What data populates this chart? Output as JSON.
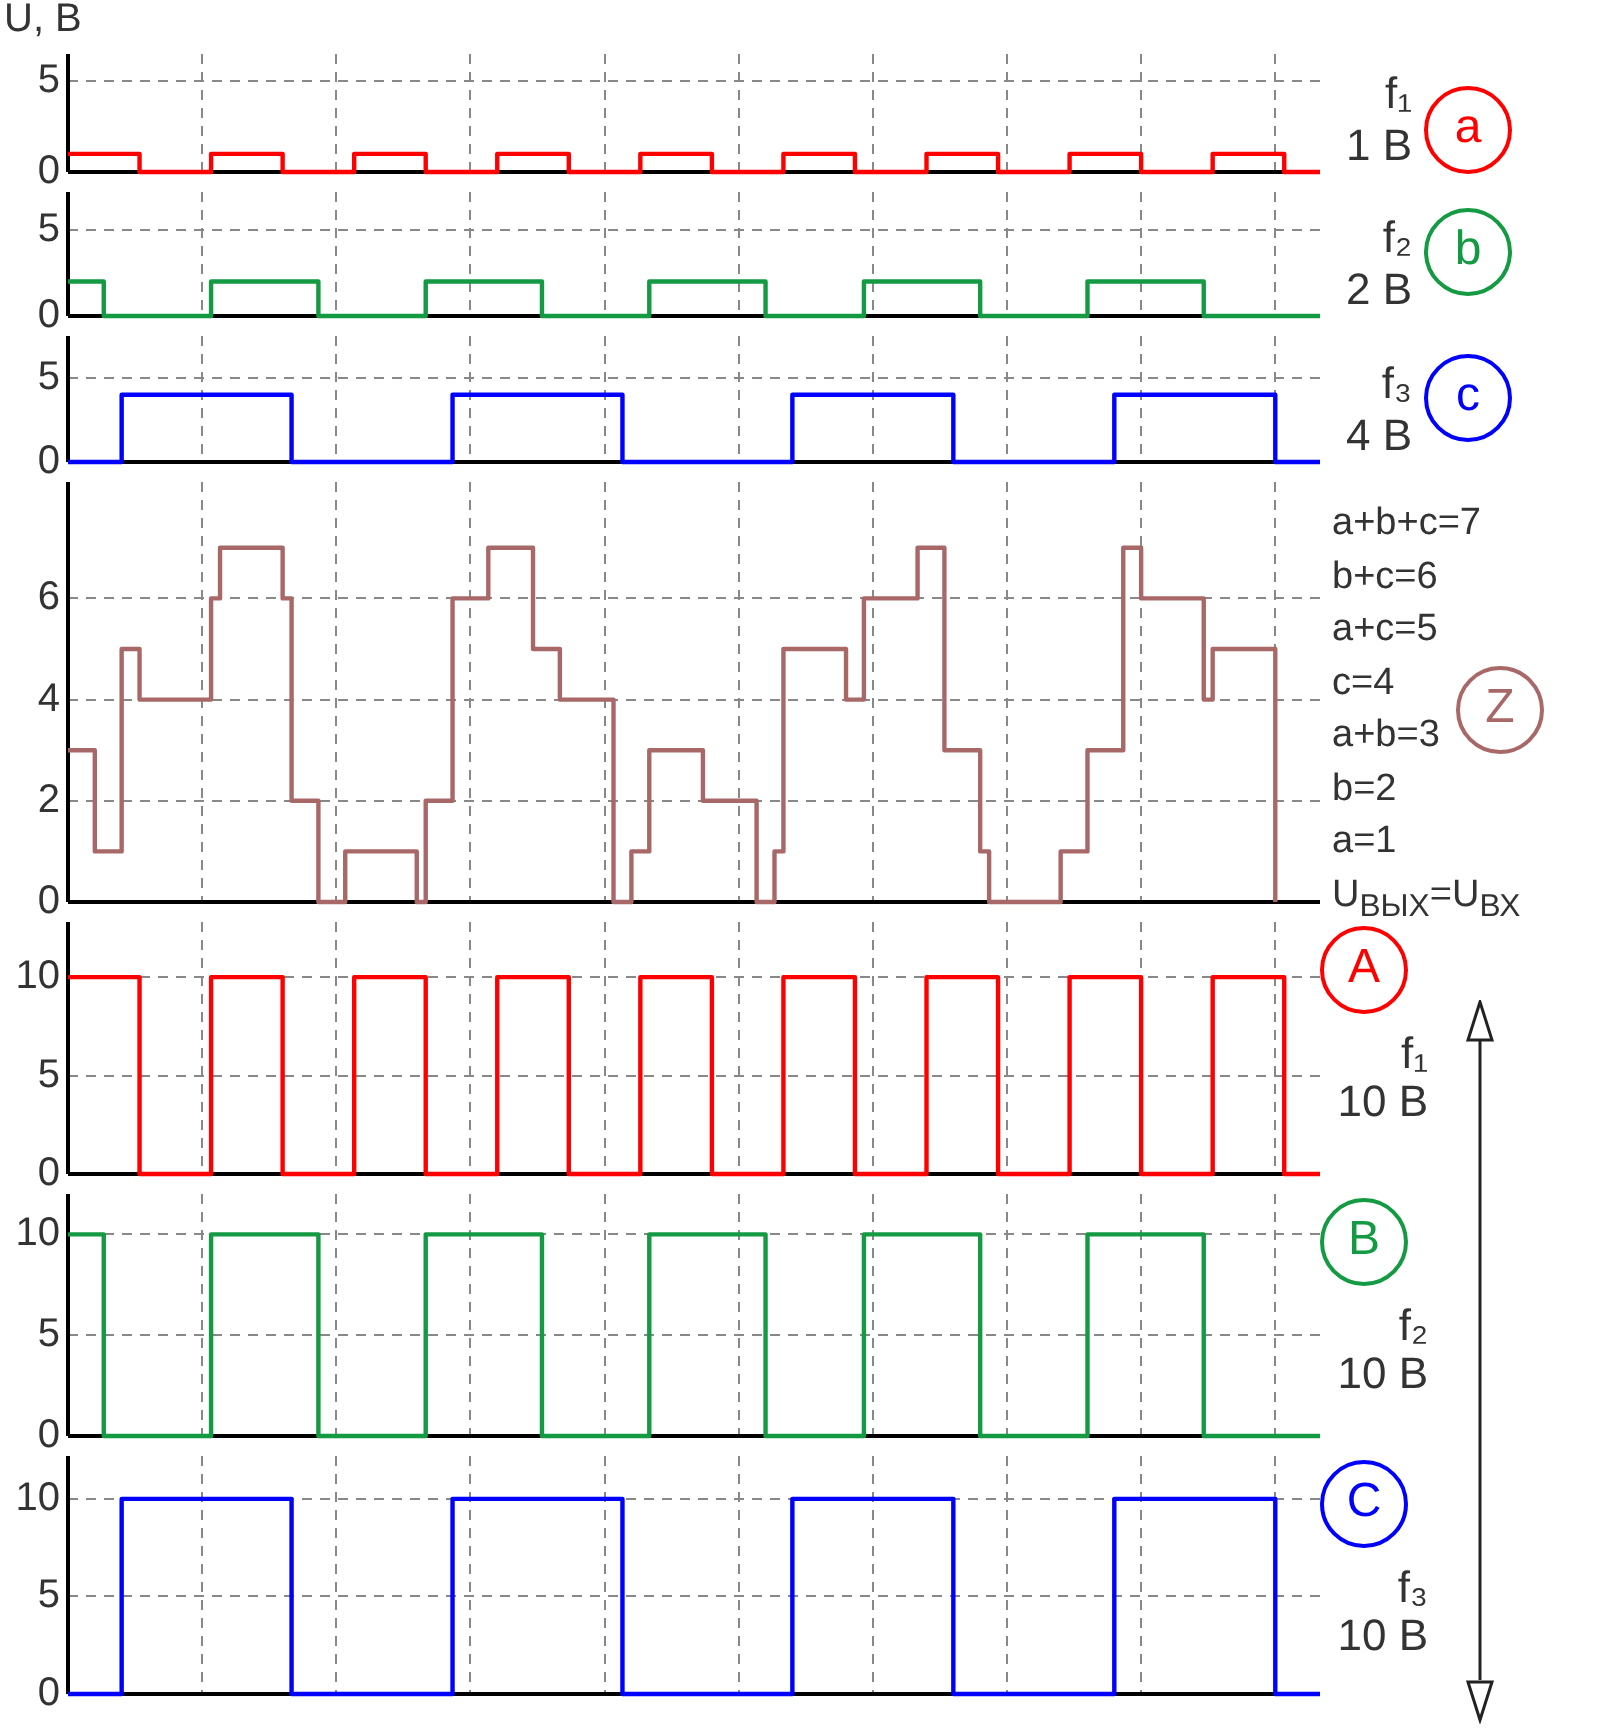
{
  "chart_data": [
    {
      "type": "step",
      "ylabel": "U, В",
      "categories": [
        null,
        null,
        null,
        null,
        null,
        null,
        null,
        null,
        null,
        null,
        null,
        null,
        null,
        null,
        null,
        null,
        null,
        null,
        null,
        null,
        null,
        null,
        null,
        null,
        null,
        null,
        null,
        null,
        null,
        null,
        null,
        null,
        null,
        null,
        null,
        null,
        null,
        null,
        null,
        null,
        null,
        null,
        null,
        null,
        null,
        null,
        null,
        null,
        null,
        null,
        null,
        null,
        null,
        null,
        null,
        null,
        null,
        null,
        null,
        null,
        null,
        null,
        null,
        null,
        null,
        null,
        null,
        null,
        null,
        null,
        null,
        null,
        null,
        null,
        null,
        null,
        null,
        null,
        null,
        null,
        null,
        null,
        null,
        null,
        null,
        null,
        null,
        null,
        null,
        null,
        null,
        null,
        null,
        null,
        null,
        null,
        null,
        null,
        null,
        null,
        null,
        null,
        null,
        null,
        null,
        null,
        null,
        null,
        null,
        null,
        null,
        null,
        null,
        null,
        null,
        null,
        null,
        null,
        null,
        null,
        null,
        null,
        null,
        null,
        null,
        null,
        null,
        null,
        null,
        null,
        null,
        null,
        null,
        null,
        null,
        null,
        null,
        null,
        null,
        null,
        null
      ],
      "series": [
        {
          "name": "a",
          "color": "#ff0000",
          "values": [
            1,
            1,
            1,
            1,
            1,
            1,
            1,
            1,
            0,
            0,
            0,
            0,
            0,
            0,
            0,
            0,
            1,
            1,
            1,
            1,
            1,
            1,
            1,
            1,
            0,
            0,
            0,
            0,
            0,
            0,
            0,
            0,
            1,
            1,
            1,
            1,
            1,
            1,
            1,
            1,
            0,
            0,
            0,
            0,
            0,
            0,
            0,
            0,
            1,
            1,
            1,
            1,
            1,
            1,
            1,
            1,
            0,
            0,
            0,
            0,
            0,
            0,
            0,
            0,
            1,
            1,
            1,
            1,
            1,
            1,
            1,
            1,
            0,
            0,
            0,
            0,
            0,
            0,
            0,
            0,
            1,
            1,
            1,
            1,
            1,
            1,
            1,
            1,
            0,
            0,
            0,
            0,
            0,
            0,
            0,
            0,
            1,
            1,
            1,
            1,
            1,
            1,
            1,
            1,
            0,
            0,
            0,
            0,
            0,
            0,
            0,
            0,
            1,
            1,
            1,
            1,
            1,
            1,
            1,
            1,
            0,
            0,
            0,
            0,
            0,
            0,
            0,
            0,
            1,
            1,
            1,
            1,
            1,
            1,
            1,
            1,
            0,
            0,
            0,
            0,
            0
          ]
        }
      ],
      "ylim": [
        0,
        6.5
      ],
      "yticks": [
        0,
        5
      ],
      "grid": true,
      "tick_labels": "y",
      "annotations": [
        "f₁",
        "1 В"
      ]
    },
    {
      "type": "step",
      "categories": [
        null,
        null,
        null,
        null,
        null,
        null,
        null,
        null,
        null,
        null,
        null,
        null,
        null,
        null,
        null,
        null,
        null,
        null,
        null,
        null,
        null,
        null,
        null,
        null,
        null,
        null,
        null,
        null,
        null,
        null,
        null,
        null,
        null,
        null,
        null,
        null,
        null,
        null,
        null,
        null,
        null,
        null,
        null,
        null,
        null,
        null,
        null,
        null,
        null,
        null,
        null,
        null,
        null,
        null,
        null,
        null,
        null,
        null,
        null,
        null,
        null,
        null,
        null,
        null,
        null,
        null,
        null,
        null,
        null,
        null,
        null,
        null,
        null,
        null,
        null,
        null,
        null,
        null,
        null,
        null,
        null,
        null,
        null,
        null,
        null,
        null,
        null,
        null,
        null,
        null,
        null,
        null,
        null,
        null,
        null,
        null,
        null,
        null,
        null,
        null,
        null,
        null,
        null,
        null,
        null,
        null,
        null,
        null,
        null,
        null,
        null,
        null,
        null,
        null,
        null,
        null,
        null,
        null,
        null,
        null,
        null,
        null,
        null,
        null,
        null,
        null,
        null,
        null,
        null,
        null,
        null,
        null,
        null,
        null,
        null,
        null,
        null,
        null,
        null,
        null,
        null
      ],
      "series": [
        {
          "name": "b",
          "color": "#149a42",
          "values": [
            2,
            2,
            2,
            2,
            0,
            0,
            0,
            0,
            0,
            0,
            0,
            0,
            0,
            0,
            0,
            0,
            2,
            2,
            2,
            2,
            2,
            2,
            2,
            2,
            2,
            2,
            2,
            2,
            0,
            0,
            0,
            0,
            0,
            0,
            0,
            0,
            0,
            0,
            0,
            0,
            2,
            2,
            2,
            2,
            2,
            2,
            2,
            2,
            2,
            2,
            2,
            2,
            2,
            0,
            0,
            0,
            0,
            0,
            0,
            0,
            0,
            0,
            0,
            0,
            0,
            2,
            2,
            2,
            2,
            2,
            2,
            2,
            2,
            2,
            2,
            2,
            2,
            2,
            0,
            0,
            0,
            0,
            0,
            0,
            0,
            0,
            0,
            0,
            0,
            2,
            2,
            2,
            2,
            2,
            2,
            2,
            2,
            2,
            2,
            2,
            2,
            2,
            0,
            0,
            0,
            0,
            0,
            0,
            0,
            0,
            0,
            0,
            0,
            0,
            2,
            2,
            2,
            2,
            2,
            2,
            2,
            2,
            2,
            2,
            2,
            2,
            2,
            0,
            0,
            0,
            0,
            0,
            0,
            0,
            0,
            0,
            0,
            0,
            0,
            0,
            0
          ]
        }
      ],
      "ylim": [
        0,
        7.2
      ],
      "yticks": [
        0,
        5
      ],
      "grid": true,
      "tick_labels": "y",
      "annotations": [
        "f₂",
        "2 В"
      ]
    },
    {
      "type": "step",
      "categories": [
        null,
        null,
        null,
        null,
        null,
        null,
        null,
        null,
        null,
        null,
        null,
        null,
        null,
        null,
        null,
        null,
        null,
        null,
        null,
        null,
        null,
        null,
        null,
        null,
        null,
        null,
        null,
        null,
        null,
        null,
        null,
        null,
        null,
        null,
        null,
        null,
        null,
        null,
        null,
        null,
        null,
        null,
        null,
        null,
        null,
        null,
        null,
        null,
        null,
        null,
        null,
        null,
        null,
        null,
        null,
        null,
        null,
        null,
        null,
        null,
        null,
        null,
        null,
        null,
        null,
        null,
        null,
        null,
        null,
        null,
        null,
        null,
        null,
        null,
        null,
        null,
        null,
        null,
        null,
        null,
        null,
        null,
        null,
        null,
        null,
        null,
        null,
        null,
        null,
        null,
        null,
        null,
        null,
        null,
        null,
        null,
        null,
        null,
        null,
        null,
        null,
        null,
        null,
        null,
        null,
        null,
        null,
        null,
        null,
        null,
        null,
        null,
        null,
        null,
        null,
        null,
        null,
        null,
        null,
        null,
        null,
        null,
        null,
        null,
        null,
        null,
        null,
        null,
        null,
        null,
        null,
        null,
        null,
        null,
        null,
        null,
        null,
        null,
        null,
        null,
        null
      ],
      "series": [
        {
          "name": "c",
          "color": "#0000ff",
          "values": [
            0,
            0,
            0,
            0,
            0,
            0,
            4,
            4,
            4,
            4,
            4,
            4,
            4,
            4,
            4,
            4,
            4,
            4,
            4,
            4,
            4,
            4,
            4,
            4,
            4,
            0,
            0,
            0,
            0,
            0,
            0,
            0,
            0,
            0,
            0,
            0,
            0,
            0,
            0,
            0,
            0,
            0,
            0,
            4,
            4,
            4,
            4,
            4,
            4,
            4,
            4,
            4,
            4,
            4,
            4,
            4,
            4,
            4,
            4,
            4,
            4,
            4,
            0,
            0,
            0,
            0,
            0,
            0,
            0,
            0,
            0,
            0,
            0,
            0,
            0,
            0,
            0,
            0,
            0,
            0,
            0,
            4,
            4,
            4,
            4,
            4,
            4,
            4,
            4,
            4,
            4,
            4,
            4,
            4,
            4,
            4,
            4,
            4,
            4,
            0,
            0,
            0,
            0,
            0,
            0,
            0,
            0,
            0,
            0,
            0,
            0,
            0,
            0,
            0,
            0,
            0,
            0,
            4,
            4,
            4,
            4,
            4,
            4,
            4,
            4,
            4,
            4,
            4,
            4,
            4,
            4,
            4,
            4,
            4,
            4,
            0,
            0,
            0,
            0,
            0,
            0
          ]
        }
      ],
      "ylim": [
        0,
        7.5
      ],
      "yticks": [
        0,
        5
      ],
      "grid": true,
      "tick_labels": "y",
      "annotations": [
        "f₃",
        "4 В"
      ]
    },
    {
      "type": "step",
      "categories": [
        null,
        null,
        null,
        null,
        null,
        null,
        null,
        null,
        null,
        null,
        null,
        null,
        null,
        null,
        null,
        null,
        null,
        null,
        null,
        null,
        null,
        null,
        null,
        null,
        null,
        null,
        null,
        null,
        null,
        null,
        null,
        null,
        null,
        null,
        null,
        null,
        null,
        null,
        null,
        null,
        null,
        null,
        null,
        null,
        null,
        null,
        null,
        null,
        null,
        null,
        null,
        null,
        null,
        null,
        null,
        null,
        null,
        null,
        null,
        null,
        null,
        null,
        null,
        null,
        null,
        null,
        null,
        null,
        null,
        null,
        null,
        null,
        null,
        null,
        null,
        null,
        null,
        null,
        null,
        null,
        null,
        null,
        null,
        null,
        null,
        null,
        null,
        null,
        null,
        null,
        null,
        null,
        null,
        null,
        null,
        null,
        null,
        null,
        null,
        null,
        null,
        null,
        null,
        null,
        null,
        null,
        null,
        null,
        null,
        null,
        null,
        null,
        null,
        null,
        null,
        null,
        null,
        null,
        null,
        null,
        null,
        null,
        null,
        null,
        null,
        null,
        null,
        null,
        null,
        null,
        null,
        null,
        null,
        null,
        null,
        null,
        null,
        null,
        null,
        null,
        null
      ],
      "series": [
        {
          "name": "Z",
          "color": "#a86868",
          "values": [
            3,
            3,
            3,
            1,
            1,
            1,
            5,
            5,
            4,
            4,
            4,
            4,
            4,
            4,
            4,
            4,
            6,
            7,
            7,
            7,
            7,
            7,
            7,
            7,
            6,
            2,
            2,
            2,
            0,
            0,
            0,
            1,
            1,
            1,
            1,
            1,
            1,
            1,
            1,
            0,
            2,
            2,
            2,
            6,
            6,
            6,
            6,
            7,
            7,
            7,
            7,
            7,
            5,
            5,
            5,
            4,
            4,
            4,
            4,
            4,
            4,
            0,
            0,
            1,
            1,
            3,
            3,
            3,
            3,
            3,
            3,
            2,
            2,
            2,
            2,
            2,
            2,
            0,
            0,
            1,
            5,
            5,
            5,
            5,
            5,
            5,
            5,
            4,
            4,
            6,
            6,
            6,
            6,
            6,
            6,
            7,
            7,
            7,
            3,
            3,
            3,
            3,
            1,
            0,
            0,
            0,
            0,
            0,
            0,
            0,
            0,
            1,
            1,
            1,
            3,
            3,
            3,
            3,
            7,
            7,
            6,
            6,
            6,
            6,
            6,
            6,
            6,
            4,
            5,
            5,
            5,
            5,
            5,
            5,
            5,
            0,
            null,
            null,
            null,
            null,
            null
          ]
        }
      ],
      "ylim": [
        0,
        8.3
      ],
      "yticks": [
        0,
        2,
        4,
        6
      ],
      "grid": true,
      "tick_labels": "y",
      "annotations": [
        "a+b+c=7",
        "b+c=6",
        "a+c=5",
        "c=4",
        "a+b=3",
        "b=2",
        "a=1",
        "U$_{ВЫХ}$=U$_{ВХ}$"
      ]
    },
    {
      "type": "step",
      "categories": [
        null,
        null,
        null,
        null,
        null,
        null,
        null,
        null,
        null,
        null,
        null,
        null,
        null,
        null,
        null,
        null,
        null,
        null,
        null,
        null,
        null,
        null,
        null,
        null,
        null,
        null,
        null,
        null,
        null,
        null,
        null,
        null,
        null,
        null,
        null,
        null,
        null,
        null,
        null,
        null,
        null,
        null,
        null,
        null,
        null,
        null,
        null,
        null,
        null,
        null,
        null,
        null,
        null,
        null,
        null,
        null,
        null,
        null,
        null,
        null,
        null,
        null,
        null,
        null,
        null,
        null,
        null,
        null,
        null,
        null,
        null,
        null,
        null,
        null,
        null,
        null,
        null,
        null,
        null,
        null,
        null,
        null,
        null,
        null,
        null,
        null,
        null,
        null,
        null,
        null,
        null,
        null,
        null,
        null,
        null,
        null,
        null,
        null,
        null,
        null,
        null,
        null,
        null,
        null,
        null,
        null,
        null,
        null,
        null,
        null,
        null,
        null,
        null,
        null,
        null,
        null,
        null,
        null,
        null,
        null,
        null,
        null,
        null,
        null,
        null,
        null,
        null,
        null,
        null,
        null,
        null,
        null,
        null,
        null,
        null,
        null,
        null,
        null,
        null,
        null,
        null
      ],
      "series": [
        {
          "name": "A",
          "color": "#ff0000",
          "values": [
            10,
            10,
            10,
            10,
            10,
            10,
            10,
            10,
            0,
            0,
            0,
            0,
            0,
            0,
            0,
            0,
            10,
            10,
            10,
            10,
            10,
            10,
            10,
            10,
            0,
            0,
            0,
            0,
            0,
            0,
            0,
            0,
            10,
            10,
            10,
            10,
            10,
            10,
            10,
            10,
            0,
            0,
            0,
            0,
            0,
            0,
            0,
            0,
            10,
            10,
            10,
            10,
            10,
            10,
            10,
            10,
            0,
            0,
            0,
            0,
            0,
            0,
            0,
            0,
            10,
            10,
            10,
            10,
            10,
            10,
            10,
            10,
            0,
            0,
            0,
            0,
            0,
            0,
            0,
            0,
            10,
            10,
            10,
            10,
            10,
            10,
            10,
            10,
            0,
            0,
            0,
            0,
            0,
            0,
            0,
            0,
            10,
            10,
            10,
            10,
            10,
            10,
            10,
            10,
            0,
            0,
            0,
            0,
            0,
            0,
            0,
            0,
            10,
            10,
            10,
            10,
            10,
            10,
            10,
            10,
            0,
            0,
            0,
            0,
            0,
            0,
            0,
            0,
            10,
            10,
            10,
            10,
            10,
            10,
            10,
            10,
            0,
            0,
            0,
            0,
            0
          ]
        }
      ],
      "ylim": [
        0,
        12.8
      ],
      "yticks": [
        0,
        5,
        10
      ],
      "grid": true,
      "tick_labels": "y",
      "annotations": [
        "f₁",
        "10 В"
      ]
    },
    {
      "type": "step",
      "categories": [
        null,
        null,
        null,
        null,
        null,
        null,
        null,
        null,
        null,
        null,
        null,
        null,
        null,
        null,
        null,
        null,
        null,
        null,
        null,
        null,
        null,
        null,
        null,
        null,
        null,
        null,
        null,
        null,
        null,
        null,
        null,
        null,
        null,
        null,
        null,
        null,
        null,
        null,
        null,
        null,
        null,
        null,
        null,
        null,
        null,
        null,
        null,
        null,
        null,
        null,
        null,
        null,
        null,
        null,
        null,
        null,
        null,
        null,
        null,
        null,
        null,
        null,
        null,
        null,
        null,
        null,
        null,
        null,
        null,
        null,
        null,
        null,
        null,
        null,
        null,
        null,
        null,
        null,
        null,
        null,
        null,
        null,
        null,
        null,
        null,
        null,
        null,
        null,
        null,
        null,
        null,
        null,
        null,
        null,
        null,
        null,
        null,
        null,
        null,
        null,
        null,
        null,
        null,
        null,
        null,
        null,
        null,
        null,
        null,
        null,
        null,
        null,
        null,
        null,
        null,
        null,
        null,
        null,
        null,
        null,
        null,
        null,
        null,
        null,
        null,
        null,
        null,
        null,
        null,
        null,
        null,
        null,
        null,
        null,
        null,
        null,
        null,
        null,
        null,
        null,
        null
      ],
      "series": [
        {
          "name": "B",
          "color": "#149a42",
          "values": [
            10,
            10,
            10,
            10,
            0,
            0,
            0,
            0,
            0,
            0,
            0,
            0,
            0,
            0,
            0,
            0,
            10,
            10,
            10,
            10,
            10,
            10,
            10,
            10,
            10,
            10,
            10,
            10,
            0,
            0,
            0,
            0,
            0,
            0,
            0,
            0,
            0,
            0,
            0,
            0,
            10,
            10,
            10,
            10,
            10,
            10,
            10,
            10,
            10,
            10,
            10,
            10,
            10,
            0,
            0,
            0,
            0,
            0,
            0,
            0,
            0,
            0,
            0,
            0,
            0,
            10,
            10,
            10,
            10,
            10,
            10,
            10,
            10,
            10,
            10,
            10,
            10,
            10,
            0,
            0,
            0,
            0,
            0,
            0,
            0,
            0,
            0,
            0,
            0,
            10,
            10,
            10,
            10,
            10,
            10,
            10,
            10,
            10,
            10,
            10,
            10,
            10,
            0,
            0,
            0,
            0,
            0,
            0,
            0,
            0,
            0,
            0,
            0,
            0,
            10,
            10,
            10,
            10,
            10,
            10,
            10,
            10,
            10,
            10,
            10,
            10,
            10,
            0,
            0,
            0,
            0,
            0,
            0,
            0,
            0,
            0,
            0,
            0,
            0,
            0,
            0
          ]
        }
      ],
      "ylim": [
        0,
        12
      ],
      "yticks": [
        0,
        5,
        10
      ],
      "grid": true,
      "tick_labels": "y",
      "annotations": [
        "f₂",
        "10 В"
      ]
    },
    {
      "type": "step",
      "categories": [
        null,
        null,
        null,
        null,
        null,
        null,
        null,
        null,
        null,
        null,
        null,
        null,
        null,
        null,
        null,
        null,
        null,
        null,
        null,
        null,
        null,
        null,
        null,
        null,
        null,
        null,
        null,
        null,
        null,
        null,
        null,
        null,
        null,
        null,
        null,
        null,
        null,
        null,
        null,
        null,
        null,
        null,
        null,
        null,
        null,
        null,
        null,
        null,
        null,
        null,
        null,
        null,
        null,
        null,
        null,
        null,
        null,
        null,
        null,
        null,
        null,
        null,
        null,
        null,
        null,
        null,
        null,
        null,
        null,
        null,
        null,
        null,
        null,
        null,
        null,
        null,
        null,
        null,
        null,
        null,
        null,
        null,
        null,
        null,
        null,
        null,
        null,
        null,
        null,
        null,
        null,
        null,
        null,
        null,
        null,
        null,
        null,
        null,
        null,
        null,
        null,
        null,
        null,
        null,
        null,
        null,
        null,
        null,
        null,
        null,
        null,
        null,
        null,
        null,
        null,
        null,
        null,
        null,
        null,
        null,
        null,
        null,
        null,
        null,
        null,
        null,
        null,
        null,
        null,
        null,
        null,
        null,
        null,
        null,
        null,
        null,
        null,
        null,
        null,
        null,
        null
      ],
      "series": [
        {
          "name": "C",
          "color": "#0000ff",
          "values": [
            0,
            0,
            0,
            0,
            0,
            0,
            10,
            10,
            10,
            10,
            10,
            10,
            10,
            10,
            10,
            10,
            10,
            10,
            10,
            10,
            10,
            10,
            10,
            10,
            10,
            0,
            0,
            0,
            0,
            0,
            0,
            0,
            0,
            0,
            0,
            0,
            0,
            0,
            0,
            0,
            0,
            0,
            0,
            10,
            10,
            10,
            10,
            10,
            10,
            10,
            10,
            10,
            10,
            10,
            10,
            10,
            10,
            10,
            10,
            10,
            10,
            10,
            0,
            0,
            0,
            0,
            0,
            0,
            0,
            0,
            0,
            0,
            0,
            0,
            0,
            0,
            0,
            0,
            0,
            0,
            0,
            10,
            10,
            10,
            10,
            10,
            10,
            10,
            10,
            10,
            10,
            10,
            10,
            10,
            10,
            10,
            10,
            10,
            10,
            0,
            0,
            0,
            0,
            0,
            0,
            0,
            0,
            0,
            0,
            0,
            0,
            0,
            0,
            0,
            0,
            0,
            0,
            10,
            10,
            10,
            10,
            10,
            10,
            10,
            10,
            10,
            10,
            10,
            10,
            10,
            10,
            10,
            10,
            10,
            10,
            0,
            0,
            0,
            0,
            0,
            0
          ]
        }
      ],
      "ylim": [
        0,
        12.2
      ],
      "yticks": [
        0,
        5,
        10
      ],
      "grid": true,
      "tick_labels": "y",
      "annotations": [
        "f₃",
        "10 В"
      ]
    }
  ]
}
